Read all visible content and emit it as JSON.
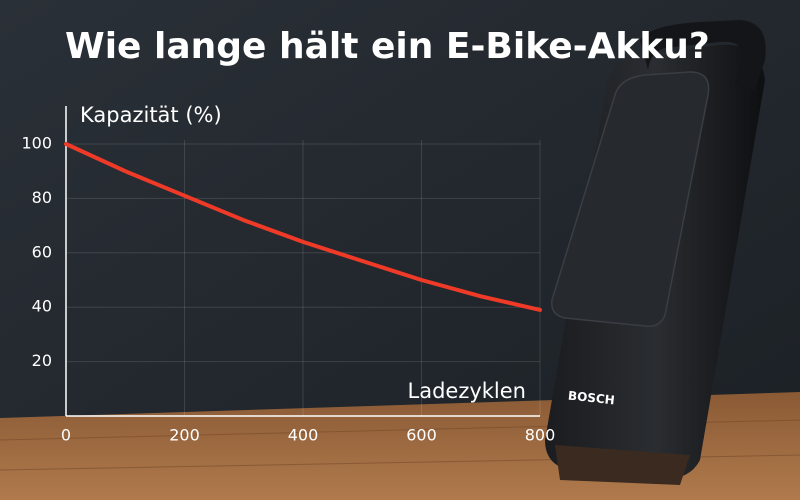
{
  "chart_data": {
    "type": "line",
    "title": "Wie lange hält ein E-Bike-Akku?",
    "y_label": "Kapazität (%)",
    "x_label": "Ladezyklen",
    "x": [
      0,
      100,
      200,
      300,
      400,
      500,
      600,
      700,
      800
    ],
    "values": [
      100,
      90,
      81,
      72,
      64,
      57,
      50,
      44,
      39
    ],
    "color": "#f03a28",
    "xlim": [
      0,
      800
    ],
    "xticks": [
      0,
      200,
      400,
      600,
      800
    ],
    "ylim": [
      0,
      100
    ],
    "yticks": [
      20,
      40,
      60,
      80,
      100
    ],
    "grid": true
  },
  "image_text": {
    "brand": "BOSCH"
  }
}
